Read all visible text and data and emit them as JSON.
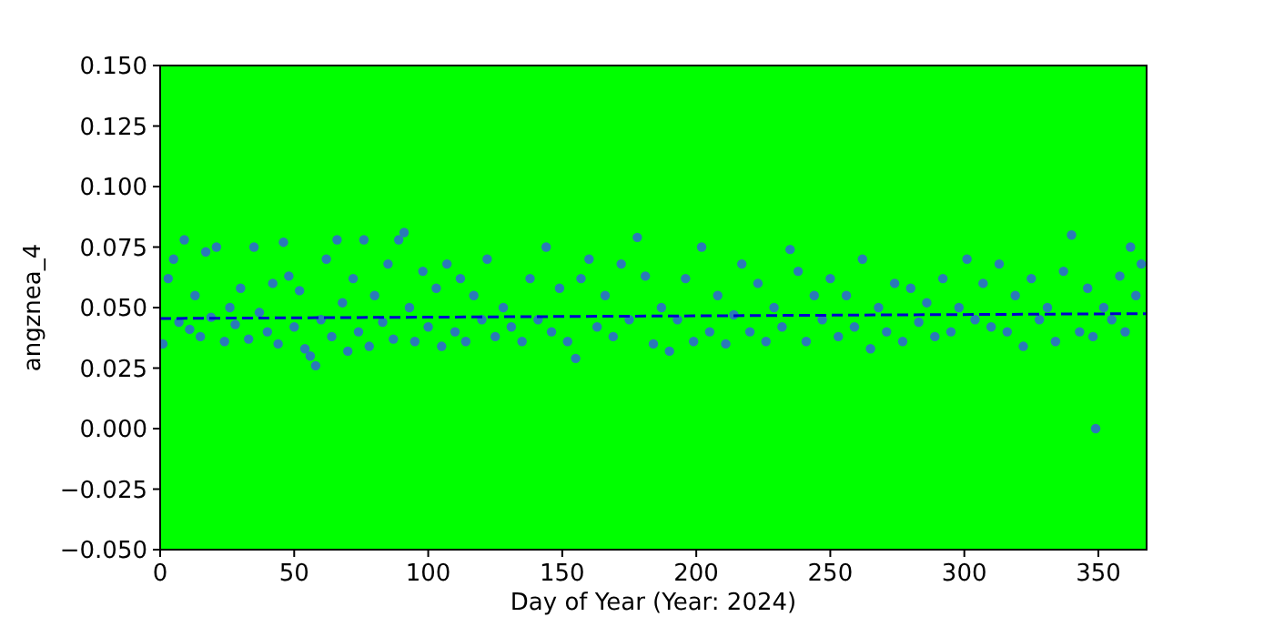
{
  "chart_data": {
    "type": "scatter",
    "xlabel": "Day of Year (Year: 2024)",
    "ylabel": "angznea_4",
    "xlim": [
      0,
      368
    ],
    "ylim": [
      -0.05,
      0.15
    ],
    "xticks": [
      0,
      50,
      100,
      150,
      200,
      250,
      300,
      350
    ],
    "yticks": [
      {
        "value": -0.05,
        "label": "−0.050"
      },
      {
        "value": -0.025,
        "label": "−0.025"
      },
      {
        "value": 0,
        "label": "0.000"
      },
      {
        "value": 0.025,
        "label": "0.025"
      },
      {
        "value": 0.05,
        "label": "0.050"
      },
      {
        "value": 0.075,
        "label": "0.075"
      },
      {
        "value": 0.1,
        "label": "0.100"
      },
      {
        "value": 0.125,
        "label": "0.125"
      },
      {
        "value": 0.15,
        "label": "0.150"
      }
    ],
    "grid": false,
    "marker": "circle",
    "series": [
      {
        "color": "#2a7ab8",
        "x": [
          1,
          3,
          5,
          7,
          9,
          11,
          13,
          15,
          17,
          19,
          21,
          24,
          26,
          28,
          30,
          33,
          35,
          37,
          40,
          42,
          44,
          46,
          48,
          50,
          52,
          54,
          56,
          58,
          60,
          62,
          64,
          66,
          68,
          70,
          72,
          74,
          76,
          78,
          80,
          83,
          85,
          87,
          89,
          91,
          93,
          95,
          98,
          100,
          103,
          105,
          107,
          110,
          112,
          114,
          117,
          120,
          122,
          125,
          128,
          131,
          135,
          138,
          141,
          144,
          146,
          149,
          152,
          155,
          157,
          160,
          163,
          166,
          169,
          172,
          175,
          178,
          181,
          184,
          187,
          190,
          193,
          196,
          199,
          202,
          205,
          208,
          211,
          214,
          217,
          220,
          223,
          226,
          229,
          232,
          235,
          238,
          241,
          244,
          247,
          250,
          253,
          256,
          259,
          262,
          265,
          268,
          271,
          274,
          277,
          280,
          283,
          286,
          289,
          292,
          295,
          298,
          301,
          304,
          307,
          310,
          313,
          316,
          319,
          322,
          325,
          328,
          331,
          334,
          337,
          340,
          343,
          346,
          348,
          349,
          352,
          355,
          358,
          360,
          362,
          364,
          366
        ],
        "values": [
          0.035,
          0.062,
          0.07,
          0.044,
          0.078,
          0.041,
          0.055,
          0.038,
          0.073,
          0.046,
          0.075,
          0.036,
          0.05,
          0.043,
          0.058,
          0.037,
          0.075,
          0.048,
          0.04,
          0.06,
          0.035,
          0.077,
          0.063,
          0.042,
          0.057,
          0.033,
          0.03,
          0.026,
          0.045,
          0.07,
          0.038,
          0.078,
          0.052,
          0.032,
          0.062,
          0.04,
          0.078,
          0.034,
          0.055,
          0.044,
          0.068,
          0.037,
          0.078,
          0.081,
          0.05,
          0.036,
          0.065,
          0.042,
          0.058,
          0.034,
          0.068,
          0.04,
          0.062,
          0.036,
          0.055,
          0.045,
          0.07,
          0.038,
          0.05,
          0.042,
          0.036,
          0.062,
          0.045,
          0.075,
          0.04,
          0.058,
          0.036,
          0.029,
          0.062,
          0.07,
          0.042,
          0.055,
          0.038,
          0.068,
          0.045,
          0.079,
          0.063,
          0.035,
          0.05,
          0.032,
          0.045,
          0.062,
          0.036,
          0.075,
          0.04,
          0.055,
          0.035,
          0.047,
          0.068,
          0.04,
          0.06,
          0.036,
          0.05,
          0.042,
          0.074,
          0.065,
          0.036,
          0.055,
          0.045,
          0.062,
          0.038,
          0.055,
          0.042,
          0.07,
          0.033,
          0.05,
          0.04,
          0.06,
          0.036,
          0.058,
          0.044,
          0.052,
          0.038,
          0.062,
          0.04,
          0.05,
          0.07,
          0.045,
          0.06,
          0.042,
          0.068,
          0.04,
          0.055,
          0.034,
          0.062,
          0.045,
          0.05,
          0.036,
          0.065,
          0.08,
          0.04,
          0.058,
          0.038,
          0.0,
          0.05,
          0.045,
          0.063,
          0.04,
          0.075,
          0.055,
          0.068
        ]
      },
      {
        "type": "line",
        "color": "#0000cc",
        "line_style": "dashed",
        "marker": "none",
        "x": [
          0,
          368
        ],
        "values": [
          0.0455,
          0.0475
        ]
      }
    ]
  }
}
